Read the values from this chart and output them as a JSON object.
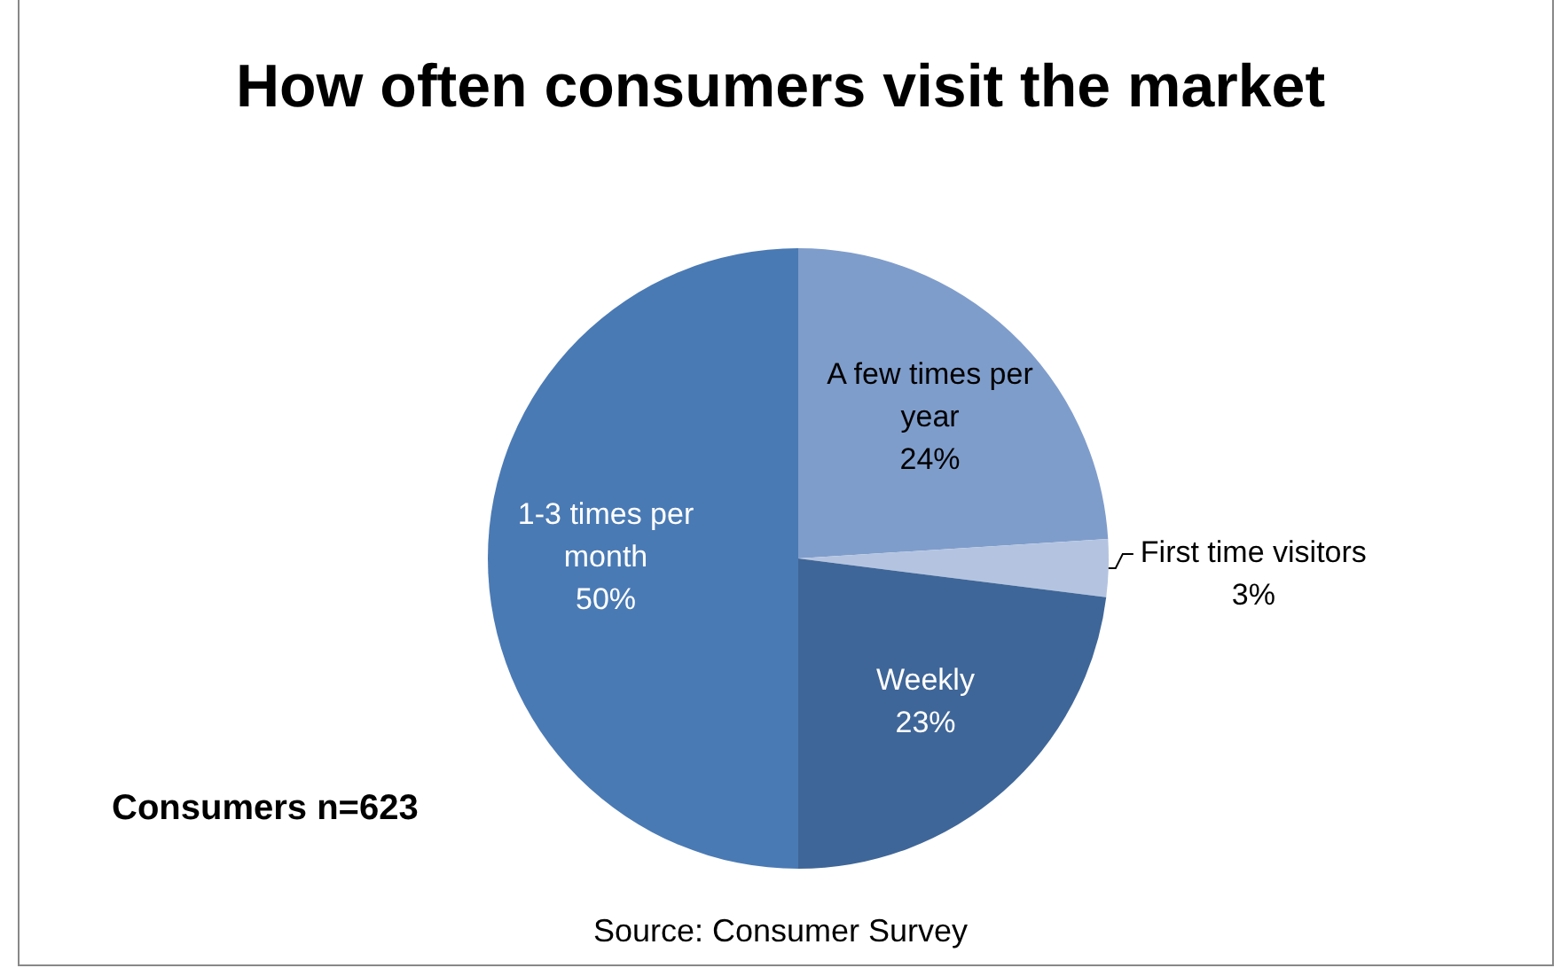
{
  "chart_data": {
    "type": "pie",
    "title": "How often consumers visit the market",
    "categories": [
      "A few times per year",
      "First time visitors",
      "Weekly",
      "1-3 times per month"
    ],
    "values": [
      24,
      3,
      23,
      50
    ],
    "colors": [
      "#7f9dcb",
      "#b4c4e0",
      "#3f6698",
      "#4a7ab4"
    ],
    "value_labels": [
      "24%",
      "3%",
      "23%",
      "50%"
    ],
    "legend": false,
    "annotations": [
      "Consumers n=623",
      "Source: Consumer Survey"
    ]
  }
}
